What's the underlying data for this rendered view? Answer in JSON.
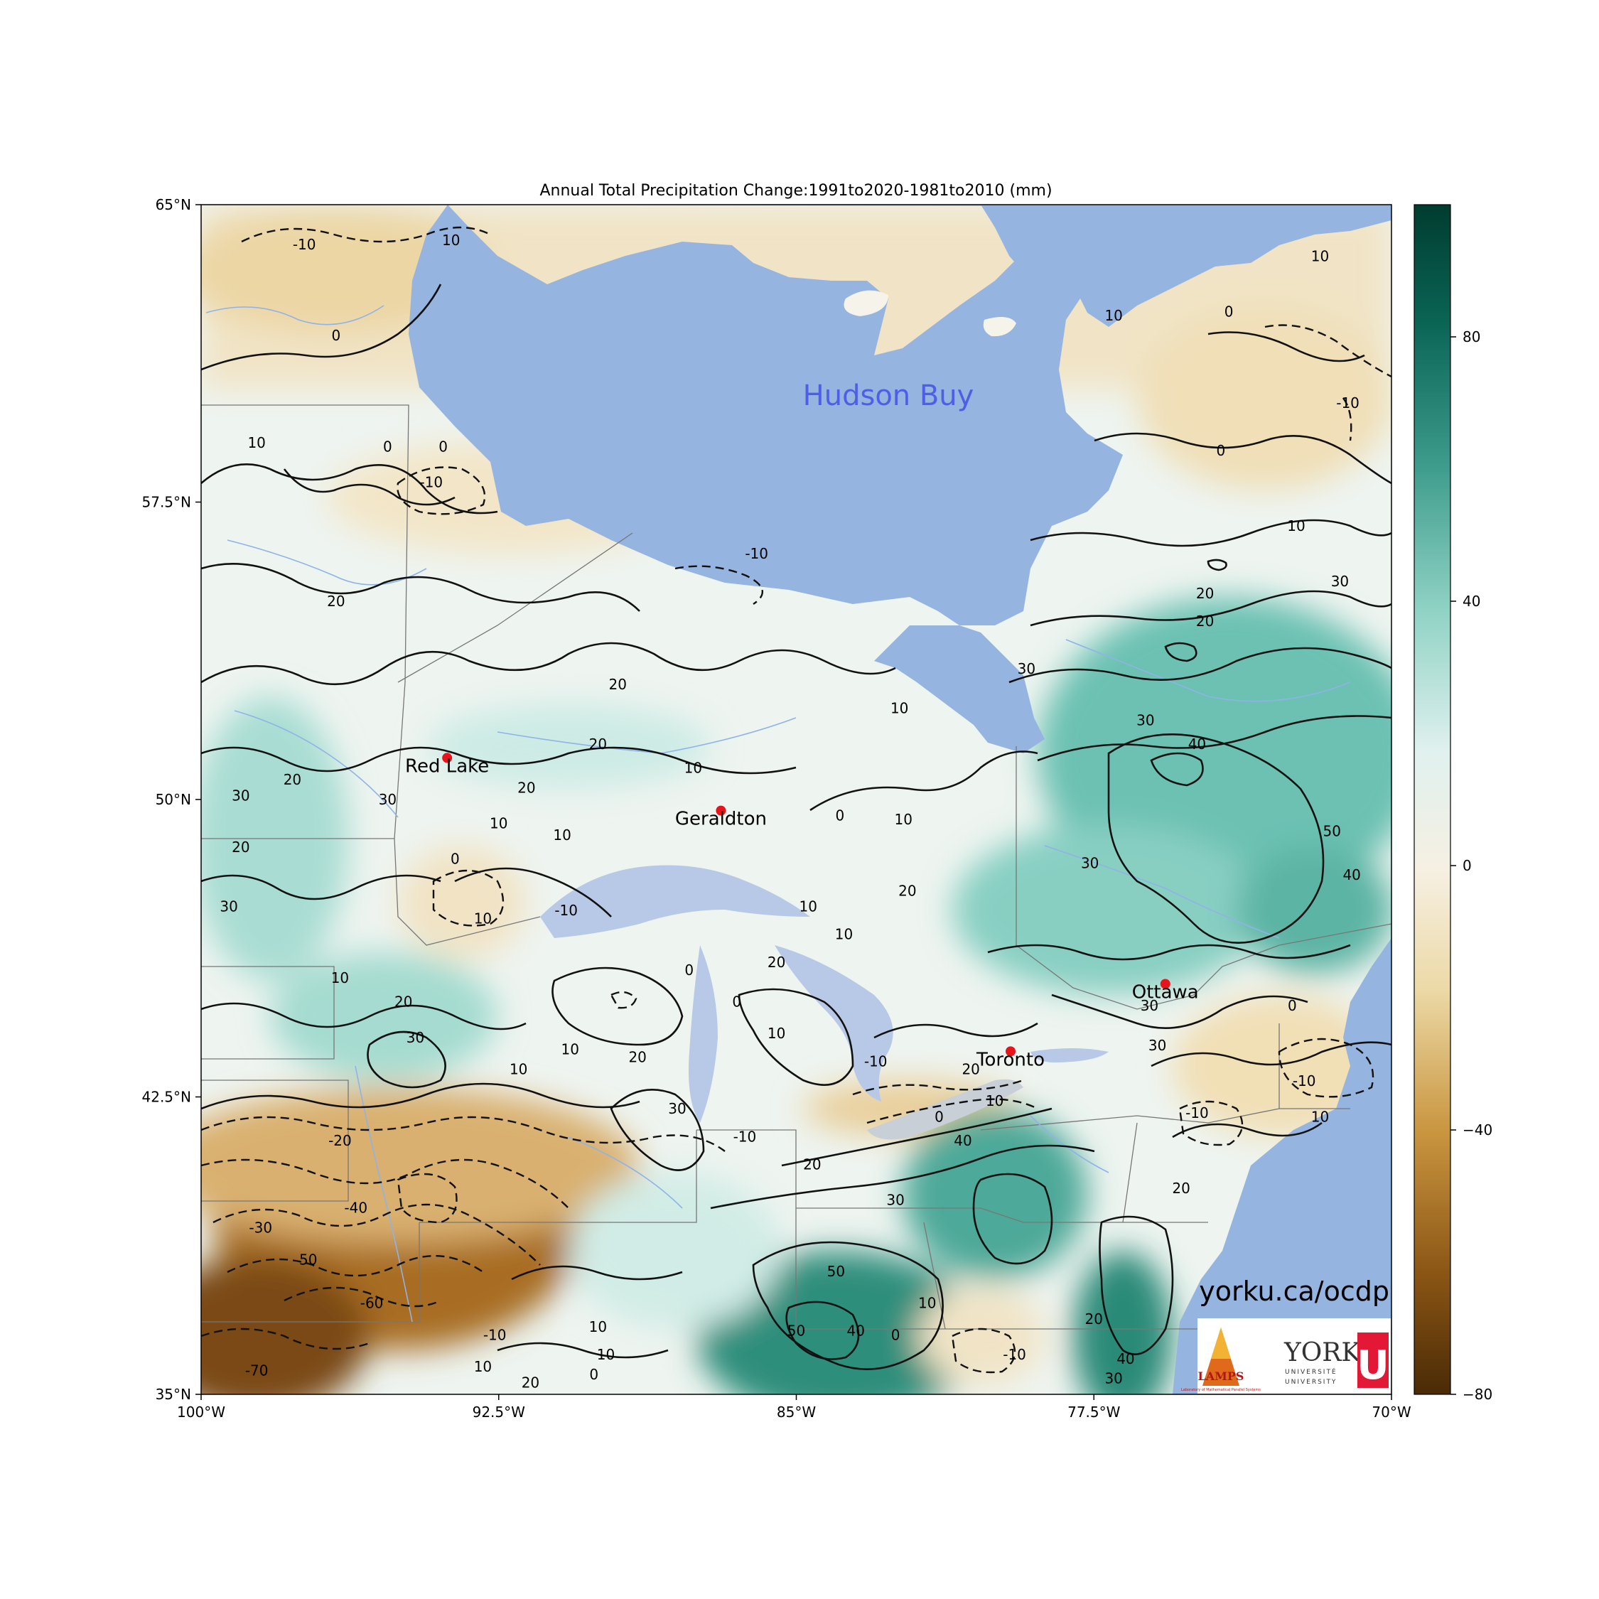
{
  "title": "Annual Total Precipitation Change:1991to2020-1981to2010 (mm)",
  "map": {
    "lon_range": [
      -100,
      -70
    ],
    "lat_range": [
      35,
      65
    ],
    "lat_ticks": [
      {
        "value": 65,
        "label": "65°N"
      },
      {
        "value": 57.5,
        "label": "57.5°N"
      },
      {
        "value": 50,
        "label": "50°N"
      },
      {
        "value": 42.5,
        "label": "42.5°N"
      },
      {
        "value": 35,
        "label": "35°N"
      }
    ],
    "lon_ticks": [
      {
        "value": -100,
        "label": "100°W"
      },
      {
        "value": -92.5,
        "label": "92.5°W"
      },
      {
        "value": -85,
        "label": "85°W"
      },
      {
        "value": -77.5,
        "label": "77.5°W"
      },
      {
        "value": -70,
        "label": "70°W"
      }
    ],
    "water_label": "Hudson Buy",
    "cities": [
      {
        "name": "Red Lake",
        "lon": -93.8,
        "lat": 51.05
      },
      {
        "name": "Geraldton",
        "lon": -86.9,
        "lat": 49.72
      },
      {
        "name": "Ottawa",
        "lon": -75.7,
        "lat": 45.35
      },
      {
        "name": "Toronto",
        "lon": -79.6,
        "lat": 43.65
      }
    ],
    "contour_labels": [
      {
        "text": "-10",
        "lon": -97.4,
        "lat": 64.0
      },
      {
        "text": "10",
        "lon": -93.7,
        "lat": 64.1
      },
      {
        "text": "0",
        "lon": -96.6,
        "lat": 61.7
      },
      {
        "text": "10",
        "lon": -98.6,
        "lat": 59.0
      },
      {
        "text": "0",
        "lon": -95.3,
        "lat": 58.9
      },
      {
        "text": "0",
        "lon": -93.9,
        "lat": 58.9
      },
      {
        "text": "-10",
        "lon": -94.2,
        "lat": 58.0
      },
      {
        "text": "-10",
        "lon": -86.0,
        "lat": 56.2
      },
      {
        "text": "20",
        "lon": -96.6,
        "lat": 55.0
      },
      {
        "text": "20",
        "lon": -89.5,
        "lat": 52.9
      },
      {
        "text": "20",
        "lon": -90.0,
        "lat": 51.4
      },
      {
        "text": "10",
        "lon": -87.6,
        "lat": 50.8
      },
      {
        "text": "10",
        "lon": -82.4,
        "lat": 52.3
      },
      {
        "text": "20",
        "lon": -97.7,
        "lat": 50.5
      },
      {
        "text": "20",
        "lon": -91.8,
        "lat": 50.3
      },
      {
        "text": "30",
        "lon": -99.0,
        "lat": 50.1
      },
      {
        "text": "30",
        "lon": -95.3,
        "lat": 50.0
      },
      {
        "text": "10",
        "lon": -92.5,
        "lat": 49.4
      },
      {
        "text": "10",
        "lon": -90.9,
        "lat": 49.1
      },
      {
        "text": "0",
        "lon": -83.9,
        "lat": 49.6
      },
      {
        "text": "10",
        "lon": -82.3,
        "lat": 49.5
      },
      {
        "text": "20",
        "lon": -99.0,
        "lat": 48.8
      },
      {
        "text": "0",
        "lon": -93.6,
        "lat": 48.5
      },
      {
        "text": "20",
        "lon": -82.2,
        "lat": 47.7
      },
      {
        "text": "30",
        "lon": -99.3,
        "lat": 47.3
      },
      {
        "text": "-10",
        "lon": -90.8,
        "lat": 47.2
      },
      {
        "text": "10",
        "lon": -92.9,
        "lat": 47.0
      },
      {
        "text": "10",
        "lon": -84.7,
        "lat": 47.3
      },
      {
        "text": "10",
        "lon": -83.8,
        "lat": 46.6
      },
      {
        "text": "20",
        "lon": -85.5,
        "lat": 45.9
      },
      {
        "text": "0",
        "lon": -87.7,
        "lat": 45.7
      },
      {
        "text": "10",
        "lon": -96.5,
        "lat": 45.5
      },
      {
        "text": "20",
        "lon": -94.9,
        "lat": 44.9
      },
      {
        "text": "30",
        "lon": -94.6,
        "lat": 44.0
      },
      {
        "text": "0",
        "lon": -86.5,
        "lat": 44.9
      },
      {
        "text": "10",
        "lon": -85.5,
        "lat": 44.1
      },
      {
        "text": "10",
        "lon": -90.7,
        "lat": 43.7
      },
      {
        "text": "20",
        "lon": -89.0,
        "lat": 43.5
      },
      {
        "text": "10",
        "lon": -92.0,
        "lat": 43.2
      },
      {
        "text": "30",
        "lon": -88.0,
        "lat": 42.2
      },
      {
        "text": "-10",
        "lon": -83.0,
        "lat": 43.4
      },
      {
        "text": "20",
        "lon": -80.6,
        "lat": 43.2
      },
      {
        "text": "10",
        "lon": -80.0,
        "lat": 42.4
      },
      {
        "text": "0",
        "lon": -81.4,
        "lat": 42.0
      },
      {
        "text": "30",
        "lon": -76.1,
        "lat": 44.8
      },
      {
        "text": "30",
        "lon": -75.9,
        "lat": 43.8
      },
      {
        "text": "0",
        "lon": -72.5,
        "lat": 44.8
      },
      {
        "text": "-10",
        "lon": -72.2,
        "lat": 42.9
      },
      {
        "text": "-10",
        "lon": -74.9,
        "lat": 42.1
      },
      {
        "text": "10",
        "lon": -71.8,
        "lat": 42.0
      },
      {
        "text": "-10",
        "lon": -86.3,
        "lat": 41.5
      },
      {
        "text": "40",
        "lon": -80.8,
        "lat": 41.4
      },
      {
        "text": "20",
        "lon": -84.6,
        "lat": 40.8
      },
      {
        "text": "30",
        "lon": -82.5,
        "lat": 39.9
      },
      {
        "text": "20",
        "lon": -75.3,
        "lat": 40.2
      },
      {
        "text": "-20",
        "lon": -96.5,
        "lat": 41.4
      },
      {
        "text": "-40",
        "lon": -96.1,
        "lat": 39.7
      },
      {
        "text": "-30",
        "lon": -98.5,
        "lat": 39.2
      },
      {
        "text": "50",
        "lon": -97.3,
        "lat": 38.4
      },
      {
        "text": "-60",
        "lon": -95.7,
        "lat": 37.3
      },
      {
        "text": "-70",
        "lon": -98.6,
        "lat": 35.6
      },
      {
        "text": "10",
        "lon": -90.0,
        "lat": 36.7
      },
      {
        "text": "-10",
        "lon": -92.6,
        "lat": 36.5
      },
      {
        "text": "10",
        "lon": -89.8,
        "lat": 36.0
      },
      {
        "text": "10",
        "lon": -92.9,
        "lat": 35.7
      },
      {
        "text": "0",
        "lon": -90.1,
        "lat": 35.5
      },
      {
        "text": "20",
        "lon": -91.7,
        "lat": 35.3
      },
      {
        "text": "50",
        "lon": -84.0,
        "lat": 38.1
      },
      {
        "text": "50",
        "lon": -85.0,
        "lat": 36.6
      },
      {
        "text": "40",
        "lon": -83.5,
        "lat": 36.6
      },
      {
        "text": "0",
        "lon": -82.5,
        "lat": 36.5
      },
      {
        "text": "10",
        "lon": -81.7,
        "lat": 37.3
      },
      {
        "text": "-10",
        "lon": -79.5,
        "lat": 36.0
      },
      {
        "text": "20",
        "lon": -77.5,
        "lat": 36.9
      },
      {
        "text": "40",
        "lon": -76.7,
        "lat": 35.9
      },
      {
        "text": "30",
        "lon": -77.0,
        "lat": 35.4
      },
      {
        "text": "10",
        "lon": -71.8,
        "lat": 63.7
      },
      {
        "text": "10",
        "lon": -77.0,
        "lat": 62.2
      },
      {
        "text": "0",
        "lon": -74.1,
        "lat": 62.3
      },
      {
        "text": "-10",
        "lon": -71.1,
        "lat": 60.0
      },
      {
        "text": "0",
        "lon": -74.3,
        "lat": 58.8
      },
      {
        "text": "10",
        "lon": -72.4,
        "lat": 56.9
      },
      {
        "text": "30",
        "lon": -71.3,
        "lat": 55.5
      },
      {
        "text": "20",
        "lon": -74.7,
        "lat": 55.2
      },
      {
        "text": "20",
        "lon": -74.7,
        "lat": 54.5
      },
      {
        "text": "30",
        "lon": -79.2,
        "lat": 53.3
      },
      {
        "text": "30",
        "lon": -76.2,
        "lat": 52.0
      },
      {
        "text": "40",
        "lon": -74.9,
        "lat": 51.4
      },
      {
        "text": "50",
        "lon": -71.5,
        "lat": 49.2
      },
      {
        "text": "40",
        "lon": -71.0,
        "lat": 48.1
      },
      {
        "text": "30",
        "lon": -77.6,
        "lat": 48.4
      }
    ]
  },
  "colorbar": {
    "vmin": -80,
    "vmax": 100,
    "ticks": [
      {
        "value": 80,
        "label": "80"
      },
      {
        "value": 40,
        "label": "40"
      },
      {
        "value": 0,
        "label": "0"
      },
      {
        "value": -40,
        "label": "−40"
      },
      {
        "value": -80,
        "label": "−80"
      }
    ]
  },
  "watermark": {
    "url": "yorku.ca/ocdp",
    "logo_lamps": "LAMPS",
    "logo_lamps_sub": "Laboratory of Mathematical Parallel Systems",
    "logo_york": "YORK",
    "logo_york_sub1": "UNIVERSITÉ",
    "logo_york_sub2": "UNIVERSITY",
    "logo_york_mark": "U"
  },
  "colors": {
    "water": "#95b4e0",
    "city_marker": "#e8141c",
    "contour": "#111111"
  }
}
